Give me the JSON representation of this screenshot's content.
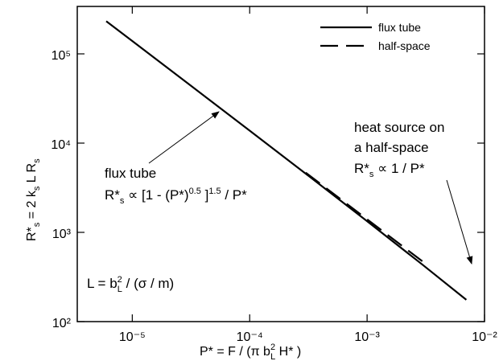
{
  "chart_data": {
    "type": "line",
    "xscale": "log",
    "yscale": "log",
    "xlabel": [
      "P* = F / (π b",
      "2",
      "L",
      " H* )"
    ],
    "ylabel": [
      "R*",
      "s",
      " = 2 k",
      "s",
      " L R",
      "s"
    ],
    "x": [
      6e-06,
      1e-05,
      3e-05,
      0.0001,
      0.0003,
      0.001,
      0.003,
      0.007
    ],
    "series": [
      {
        "name": "flux tube",
        "color": "#000000",
        "style": "solid",
        "values": [
          232500,
          139340,
          46283,
          13790,
          4546,
          1334,
          428.9,
          175.4
        ]
      },
      {
        "name": "half-space",
        "color": "#000000",
        "style": "dashed",
        "values": [
          null,
          null,
          null,
          null,
          4667,
          1400,
          467,
          null
        ]
      }
    ],
    "xlim": [
      3.4e-06,
      0.01
    ],
    "ylim": [
      100,
      340000
    ],
    "xticks": [
      {
        "value": 1e-05,
        "label": "10⁻⁵"
      },
      {
        "value": 0.0001,
        "label": "10⁻⁴"
      },
      {
        "value": 0.001,
        "label": "10⁻³"
      },
      {
        "value": 0.01,
        "label": "10⁻²"
      }
    ],
    "yticks": [
      {
        "value": 100,
        "label": "10²"
      },
      {
        "value": 1000,
        "label": "10³"
      },
      {
        "value": 10000,
        "label": "10⁴"
      },
      {
        "value": 100000,
        "label": "10⁵"
      }
    ],
    "legend": "top-right",
    "grid": false,
    "annotations": [
      [
        "flux tube"
      ],
      [
        "R*",
        "s",
        " ∝ [1 - (P*)",
        "0.5",
        " ]",
        "1.5",
        " / P*"
      ],
      [
        "heat source on"
      ],
      [
        "a half-space"
      ],
      [
        "R*",
        "s",
        " ∝ 1 / P*"
      ],
      [
        "L = b",
        "2",
        "L",
        " / (σ / m)"
      ]
    ]
  }
}
